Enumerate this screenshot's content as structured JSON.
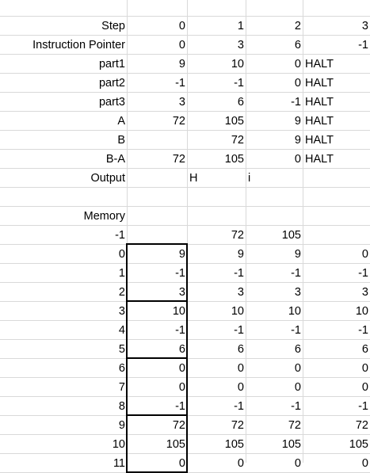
{
  "sheet": {
    "rows": [
      [
        "Step",
        "0",
        "1",
        "2",
        "3"
      ],
      [
        "Instruction Pointer",
        "0",
        "3",
        "6",
        "-1"
      ],
      [
        "part1",
        "9",
        "10",
        "0",
        "HALT"
      ],
      [
        "part2",
        "-1",
        "-1",
        "0",
        "HALT"
      ],
      [
        "part3",
        "3",
        "6",
        "-1",
        "HALT"
      ],
      [
        "A",
        "72",
        "105",
        "9",
        "HALT"
      ],
      [
        "B",
        "",
        "72",
        "9",
        "HALT"
      ],
      [
        "B-A",
        "72",
        "105",
        "0",
        "HALT"
      ],
      [
        "Output",
        "",
        "H",
        "i",
        ""
      ],
      [
        "",
        "",
        "",
        "",
        ""
      ],
      [
        "Memory",
        "",
        "",
        "",
        ""
      ],
      [
        "-1",
        "",
        "72",
        "105",
        ""
      ],
      [
        "0",
        "9",
        "9",
        "9",
        "0"
      ],
      [
        "1",
        "-1",
        "-1",
        "-1",
        "-1"
      ],
      [
        "2",
        "3",
        "3",
        "3",
        "3"
      ],
      [
        "3",
        "10",
        "10",
        "10",
        "10"
      ],
      [
        "4",
        "-1",
        "-1",
        "-1",
        "-1"
      ],
      [
        "5",
        "6",
        "6",
        "6",
        "6"
      ],
      [
        "6",
        "0",
        "0",
        "0",
        "0"
      ],
      [
        "7",
        "0",
        "0",
        "0",
        "0"
      ],
      [
        "8",
        "-1",
        "-1",
        "-1",
        "-1"
      ],
      [
        "9",
        "72",
        "72",
        "72",
        "72"
      ],
      [
        "10",
        "105",
        "105",
        "105",
        "105"
      ],
      [
        "11",
        "0",
        "0",
        "0",
        "0"
      ]
    ],
    "left_aligned_values": [
      "HALT",
      "H",
      "i"
    ]
  }
}
